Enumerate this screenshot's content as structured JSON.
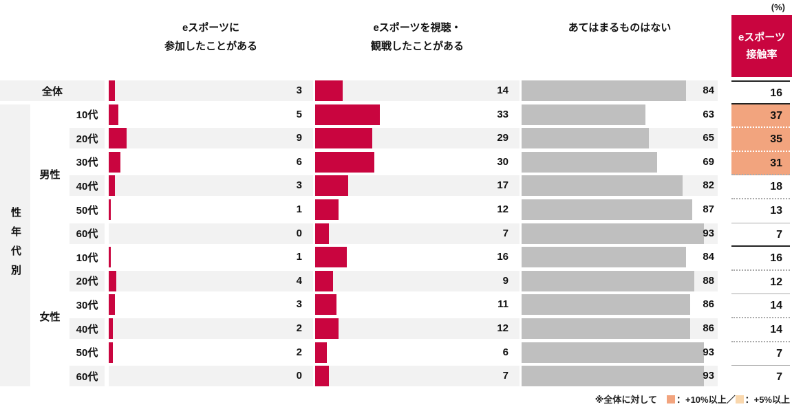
{
  "unit_label": "(%)",
  "rate_header": {
    "line1": "eスポーツ",
    "line2": "接触率"
  },
  "columns": [
    {
      "id": "participated",
      "header_line1": "eスポーツに",
      "header_line2": "参加したことがある"
    },
    {
      "id": "watched",
      "header_line1": "eスポーツを視聴・",
      "header_line2": "観戦したことがある"
    },
    {
      "id": "none",
      "header_line1": "あてはまるものはない",
      "header_line2": ""
    }
  ],
  "groups": {
    "axis_label": "性年代別",
    "male_label": "男性",
    "female_label": "女性"
  },
  "rows": [
    {
      "group": "overall",
      "label": "全体",
      "participated": 3,
      "watched": 14,
      "none": 84,
      "rate": 16,
      "highlight": false
    },
    {
      "group": "male",
      "label": "10代",
      "participated": 5,
      "watched": 33,
      "none": 63,
      "rate": 37,
      "highlight": true
    },
    {
      "group": "male",
      "label": "20代",
      "participated": 9,
      "watched": 29,
      "none": 65,
      "rate": 35,
      "highlight": true
    },
    {
      "group": "male",
      "label": "30代",
      "participated": 6,
      "watched": 30,
      "none": 69,
      "rate": 31,
      "highlight": true
    },
    {
      "group": "male",
      "label": "40代",
      "participated": 3,
      "watched": 17,
      "none": 82,
      "rate": 18,
      "highlight": false
    },
    {
      "group": "male",
      "label": "50代",
      "participated": 1,
      "watched": 12,
      "none": 87,
      "rate": 13,
      "highlight": false
    },
    {
      "group": "male",
      "label": "60代",
      "participated": 0,
      "watched": 7,
      "none": 93,
      "rate": 7,
      "highlight": false
    },
    {
      "group": "female",
      "label": "10代",
      "participated": 1,
      "watched": 16,
      "none": 84,
      "rate": 16,
      "highlight": false
    },
    {
      "group": "female",
      "label": "20代",
      "participated": 4,
      "watched": 9,
      "none": 88,
      "rate": 12,
      "highlight": false
    },
    {
      "group": "female",
      "label": "30代",
      "participated": 3,
      "watched": 11,
      "none": 86,
      "rate": 14,
      "highlight": false
    },
    {
      "group": "female",
      "label": "40代",
      "participated": 2,
      "watched": 12,
      "none": 86,
      "rate": 14,
      "highlight": false
    },
    {
      "group": "female",
      "label": "50代",
      "participated": 2,
      "watched": 6,
      "none": 93,
      "rate": 7,
      "highlight": false
    },
    {
      "group": "female",
      "label": "60代",
      "participated": 0,
      "watched": 7,
      "none": 93,
      "rate": 7,
      "highlight": false
    }
  ],
  "legend": {
    "note": "※全体に対して",
    "item1_text": "：+10%以上／",
    "item2_text": "：+5%以上"
  },
  "colors": {
    "red": "#c9053f",
    "gray_bar": "#bfbfbf",
    "stripe": "#f2f2f2",
    "highlight": "#f2a47e",
    "highlight_light": "#f9d7ad"
  },
  "chart_data": {
    "type": "bar",
    "title": "eスポーツ接触率",
    "unit": "%",
    "orientation": "horizontal",
    "categories": [
      "全体",
      "男性10代",
      "男性20代",
      "男性30代",
      "男性40代",
      "男性50代",
      "男性60代",
      "女性10代",
      "女性20代",
      "女性30代",
      "女性40代",
      "女性50代",
      "女性60代"
    ],
    "series": [
      {
        "name": "eスポーツに参加したことがある",
        "values": [
          3,
          5,
          9,
          6,
          3,
          1,
          0,
          1,
          4,
          3,
          2,
          2,
          0
        ]
      },
      {
        "name": "eスポーツを視聴・観戦したことがある",
        "values": [
          14,
          33,
          29,
          30,
          17,
          12,
          7,
          16,
          9,
          11,
          12,
          6,
          7
        ]
      },
      {
        "name": "あてはまるものはない",
        "values": [
          84,
          63,
          65,
          69,
          82,
          87,
          93,
          84,
          88,
          86,
          86,
          93,
          93
        ]
      },
      {
        "name": "eスポーツ接触率",
        "values": [
          16,
          37,
          35,
          31,
          18,
          13,
          7,
          16,
          12,
          14,
          14,
          7,
          7
        ]
      }
    ],
    "highlighted_rate_categories": [
      "男性10代",
      "男性20代",
      "男性30代"
    ],
    "xlim": [
      0,
      100
    ],
    "grid": false,
    "legend_note": "※全体に対して ■：+10%以上／■：+5%以上",
    "axis_group_label": "性年代別"
  }
}
